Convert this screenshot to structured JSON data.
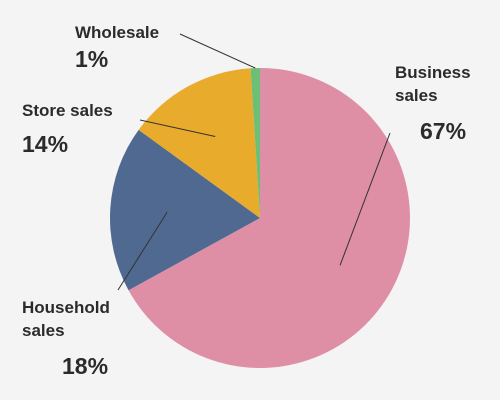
{
  "chart_data": {
    "type": "pie",
    "categories": [
      "Business sales",
      "Household sales",
      "Store sales",
      "Wholesale"
    ],
    "values": [
      67,
      18,
      14,
      1
    ],
    "value_labels": [
      "67%",
      "18%",
      "14%",
      "1%"
    ],
    "label_lines": [
      [
        "Business",
        "sales"
      ],
      [
        "Household",
        "sales"
      ],
      [
        "Store sales"
      ],
      [
        "Wholesale"
      ]
    ],
    "colors": [
      "#df8fa5",
      "#4f6990",
      "#e8ab2b",
      "#6bc075"
    ],
    "start_angle_deg": 0,
    "direction": "clockwise",
    "legend": "none"
  }
}
